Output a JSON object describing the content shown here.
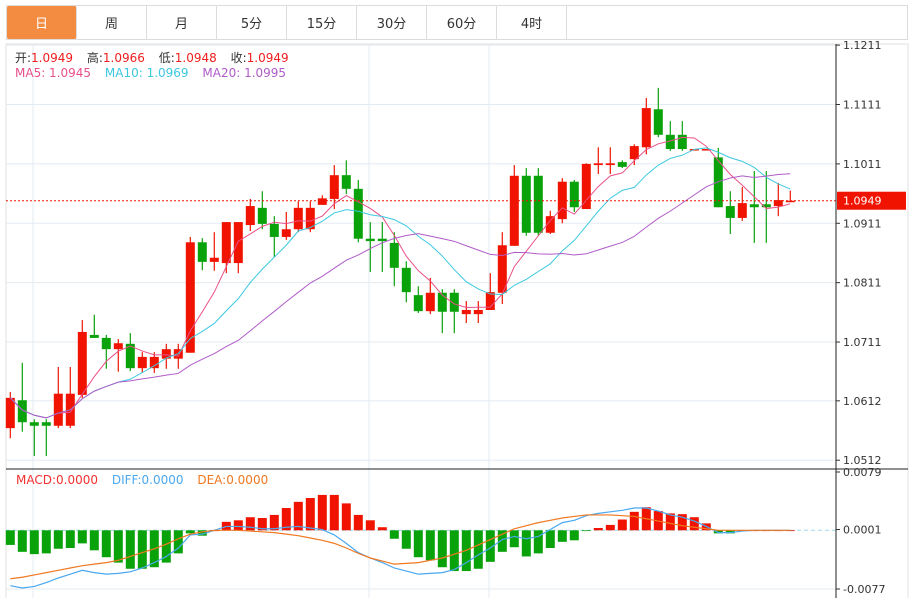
{
  "tabs": [
    {
      "label": "日",
      "active": true
    },
    {
      "label": "周"
    },
    {
      "label": "月"
    },
    {
      "label": "5分"
    },
    {
      "label": "15分"
    },
    {
      "label": "30分"
    },
    {
      "label": "60分"
    },
    {
      "label": "4时"
    }
  ],
  "ohlc_info": {
    "open_label": "开:",
    "open": "1.0949",
    "high_label": "高:",
    "high": "1.0966",
    "low_label": "低:",
    "low": "1.0948",
    "close_label": "收:",
    "close": "1.0949"
  },
  "ma_info": {
    "ma5": "MA5: 1.0945",
    "ma10": "MA10: 1.0969",
    "ma20": "MA20: 1.0995"
  },
  "macd_info": {
    "macd": "MACD:0.0000",
    "diff": "DIFF:0.0000",
    "dea": "DEA:0.0000"
  },
  "colors": {
    "up": "#f01400",
    "down": "#0aa20a",
    "ma5": "#e8508a",
    "ma10": "#3cc8e0",
    "ma20": "#b05cc8",
    "diff": "#4aa8f0",
    "dea": "#f07820",
    "active_tab": "#f38b40",
    "last_price": "#f01400"
  },
  "chart_data": [
    {
      "type": "candlestick",
      "price_ticks": [
        "1.1211",
        "1.1111",
        "1.1011",
        "1.0911",
        "1.0811",
        "1.0711",
        "1.0612",
        "1.0512"
      ],
      "ylim": [
        1.0512,
        1.1211
      ],
      "last_price": "1.0949",
      "ma_periods": [
        5,
        10,
        20
      ],
      "candles": [
        [
          1.0566,
          1.0627,
          1.0549,
          1.0617
        ],
        [
          1.0613,
          1.0676,
          1.056,
          1.0576
        ],
        [
          1.0576,
          1.0581,
          1.0519,
          1.057
        ],
        [
          1.0576,
          1.0581,
          1.0519,
          1.057
        ],
        [
          1.057,
          1.0669,
          1.0566,
          1.0624
        ],
        [
          1.057,
          1.0669,
          1.0566,
          1.0624
        ],
        [
          1.0622,
          1.0748,
          1.0617,
          1.0728
        ],
        [
          1.0723,
          1.0757,
          1.0718,
          1.0718
        ],
        [
          1.0718,
          1.0723,
          1.0666,
          1.0699
        ],
        [
          1.0699,
          1.0716,
          1.0661,
          1.0709
        ],
        [
          1.0708,
          1.0726,
          1.0662,
          1.0667
        ],
        [
          1.0667,
          1.0694,
          1.0659,
          1.0686
        ],
        [
          1.0667,
          1.0694,
          1.0659,
          1.0686
        ],
        [
          1.0683,
          1.0708,
          1.0666,
          1.0699
        ],
        [
          1.0683,
          1.0708,
          1.0666,
          1.0699
        ],
        [
          1.0693,
          1.0888,
          1.0693,
          1.0879
        ],
        [
          1.0879,
          1.0886,
          1.0832,
          1.0846
        ],
        [
          1.0846,
          1.0896,
          1.0831,
          1.0853
        ],
        [
          1.0844,
          1.0913,
          1.0827,
          1.0913
        ],
        [
          1.0844,
          1.0913,
          1.0827,
          1.0913
        ],
        [
          1.0908,
          1.0952,
          1.0898,
          1.094
        ],
        [
          1.0937,
          1.0965,
          1.0901,
          1.091
        ],
        [
          1.091,
          1.0923,
          1.0854,
          1.0888
        ],
        [
          1.0888,
          1.093,
          1.0883,
          1.0901
        ],
        [
          1.0901,
          1.0948,
          1.0896,
          1.0937
        ],
        [
          1.0901,
          1.0948,
          1.0896,
          1.0937
        ],
        [
          1.0942,
          1.0958,
          1.0942,
          1.0953
        ],
        [
          1.0952,
          1.1009,
          1.0935,
          1.0992
        ],
        [
          1.0992,
          1.1017,
          1.096,
          1.0969
        ],
        [
          1.0969,
          1.0984,
          1.0879,
          1.0885
        ],
        [
          1.0885,
          1.0913,
          1.0829,
          1.0881
        ],
        [
          1.0885,
          1.0913,
          1.0829,
          1.0881
        ],
        [
          1.0878,
          1.0896,
          1.0805,
          1.0836
        ],
        [
          1.0836,
          1.0847,
          1.0778,
          1.0795
        ],
        [
          1.079,
          1.0805,
          1.076,
          1.0763
        ],
        [
          1.0763,
          1.0819,
          1.0758,
          1.0794
        ],
        [
          1.0794,
          1.08,
          1.0726,
          1.0762
        ],
        [
          1.0794,
          1.08,
          1.0726,
          1.0762
        ],
        [
          1.0758,
          1.078,
          1.0743,
          1.0765
        ],
        [
          1.0758,
          1.078,
          1.0743,
          1.0765
        ],
        [
          1.0765,
          1.0827,
          1.0765,
          1.0795
        ],
        [
          1.0794,
          1.0896,
          1.0775,
          1.0874
        ],
        [
          1.0873,
          1.1009,
          1.0873,
          1.0991
        ],
        [
          1.0991,
          1.1004,
          1.089,
          1.0895
        ],
        [
          1.0991,
          1.1004,
          1.089,
          1.0895
        ],
        [
          1.0895,
          1.0932,
          1.0893,
          1.0923
        ],
        [
          1.0918,
          1.0987,
          1.0911,
          1.0981
        ],
        [
          1.0981,
          1.0984,
          1.093,
          1.0938
        ],
        [
          1.0935,
          1.1012,
          1.0935,
          1.1011
        ],
        [
          1.1009,
          1.1039,
          1.0994,
          1.1012
        ],
        [
          1.1009,
          1.1039,
          1.0994,
          1.1012
        ],
        [
          1.1014,
          1.1017,
          1.1004,
          1.1006
        ],
        [
          1.1019,
          1.1044,
          1.1009,
          1.1041
        ],
        [
          1.1039,
          1.1122,
          1.1027,
          1.1105
        ],
        [
          1.1103,
          1.1139,
          1.1056,
          1.106
        ],
        [
          1.106,
          1.1083,
          1.1033,
          1.1036
        ],
        [
          1.106,
          1.1083,
          1.1033,
          1.1036
        ],
        [
          1.1034,
          1.1036,
          1.1034,
          1.1036
        ],
        [
          1.1034,
          1.1036,
          1.1034,
          1.1036
        ],
        [
          1.1022,
          1.1038,
          1.0938,
          1.0938
        ],
        [
          1.094,
          1.0965,
          1.0893,
          1.092
        ],
        [
          1.092,
          1.0972,
          1.0915,
          1.0945
        ],
        [
          1.0943,
          1.0999,
          1.0878,
          1.0938
        ],
        [
          1.0943,
          1.0999,
          1.0878,
          1.0938
        ],
        [
          1.094,
          1.0979,
          1.0923,
          1.095
        ],
        [
          1.0948,
          1.0966,
          1.0948,
          1.0949
        ]
      ]
    },
    {
      "type": "macd",
      "ticks": [
        "0.0079",
        "0.0001",
        "-0.0077"
      ],
      "ylim": [
        -0.0077,
        0.0079
      ],
      "histogram": [
        -0.0019,
        -0.0028,
        -0.0031,
        -0.003,
        -0.0024,
        -0.0023,
        -0.0017,
        -0.0026,
        -0.0035,
        -0.0042,
        -0.005,
        -0.005,
        -0.0048,
        -0.0042,
        -0.003,
        -0.0004,
        -0.0007,
        0.0,
        0.0011,
        0.0013,
        0.0017,
        0.0016,
        0.002,
        0.0029,
        0.0037,
        0.0042,
        0.0046,
        0.0046,
        0.0035,
        0.002,
        0.0013,
        0.0004,
        -0.0011,
        -0.0024,
        -0.0035,
        -0.0039,
        -0.0048,
        -0.0053,
        -0.0053,
        -0.005,
        -0.0041,
        -0.0028,
        -0.0022,
        -0.0034,
        -0.003,
        -0.0023,
        -0.0015,
        -0.0013,
        -0.0001,
        0.0003,
        0.0007,
        0.0014,
        0.0024,
        0.003,
        0.0025,
        0.0022,
        0.0021,
        0.0017,
        0.0009,
        -0.0004,
        -0.0004,
        0,
        0,
        0,
        0,
        0
      ],
      "diff": [
        -0.0072,
        -0.0075,
        -0.0073,
        -0.0068,
        -0.0062,
        -0.0057,
        -0.0052,
        -0.0055,
        -0.0057,
        -0.0056,
        -0.0054,
        -0.0049,
        -0.0042,
        -0.0034,
        -0.0023,
        -0.0006,
        -0.0005,
        0.0,
        0.0005,
        0.0005,
        0.0004,
        0.0002,
        0.0002,
        0.0004,
        0.0005,
        0.0003,
        0.0001,
        -0.0006,
        -0.0017,
        -0.0029,
        -0.0036,
        -0.0042,
        -0.0049,
        -0.0053,
        -0.0057,
        -0.0056,
        -0.0055,
        -0.0051,
        -0.0042,
        -0.0032,
        -0.0023,
        -0.0012,
        -0.0008,
        -0.0011,
        -0.0008,
        0.0001,
        0.001,
        0.0013,
        0.0019,
        0.0022,
        0.0024,
        0.0026,
        0.0029,
        0.0029,
        0.0025,
        0.002,
        0.0017,
        0.0012,
        0.0005,
        -0.0003,
        -0.0003,
        -0.0001,
        0,
        0,
        0,
        0
      ],
      "dea": [
        -0.0063,
        -0.0061,
        -0.0058,
        -0.0055,
        -0.0052,
        -0.0049,
        -0.0046,
        -0.0044,
        -0.0042,
        -0.0039,
        -0.0034,
        -0.0029,
        -0.0024,
        -0.0018,
        -0.0011,
        -0.0005,
        -0.0002,
        0.0,
        0.0,
        0.0,
        -0.0001,
        -0.0002,
        -0.0003,
        -0.0005,
        -0.0007,
        -0.001,
        -0.0013,
        -0.0017,
        -0.0023,
        -0.003,
        -0.0036,
        -0.004,
        -0.0044,
        -0.0043,
        -0.0042,
        -0.0039,
        -0.0036,
        -0.0031,
        -0.0026,
        -0.0019,
        -0.0012,
        -0.0005,
        0.0002,
        0.0006,
        0.001,
        0.0013,
        0.0016,
        0.0018,
        0.002,
        0.002,
        0.002,
        0.0019,
        0.0018,
        0.0015,
        0.0012,
        0.0009,
        0.0006,
        0.0004,
        0.0002,
        0.0,
        0,
        0,
        0,
        0,
        0,
        0
      ]
    }
  ]
}
